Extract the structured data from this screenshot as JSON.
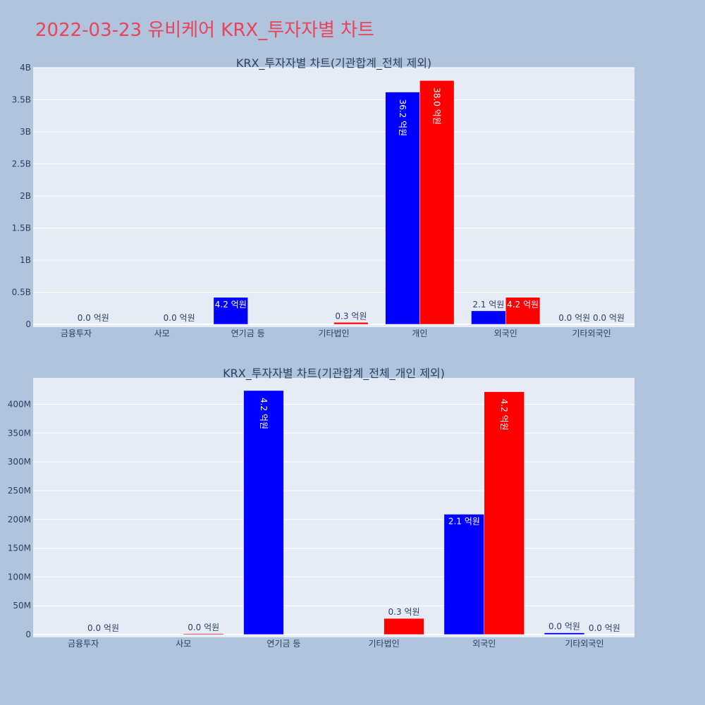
{
  "page": {
    "title": "2022-03-23 유비케어 KRX_투자자별 차트"
  },
  "colors": {
    "background": "#b0c4de",
    "plot_bg": "#e5ecf6",
    "grid": "#ffffff",
    "title": "#e8435a",
    "text": "#2a3f5f",
    "series_a": "#0000ff",
    "series_b": "#ff0000"
  },
  "chart_data": [
    {
      "type": "bar",
      "title": "KRX_투자자별 차트(기관합계_전체 제외)",
      "categories": [
        "금융투자",
        "사모",
        "연기금 등",
        "기타법인",
        "개인",
        "외국인",
        "기타외국인"
      ],
      "series": [
        {
          "color": "#0000ff",
          "values": [
            0,
            0,
            420000000,
            0,
            3620000000,
            210000000,
            0
          ],
          "labels": [
            "",
            "",
            "4.2 억원",
            "",
            "36.2 억원",
            "2.1 억원",
            "0.0 억원"
          ]
        },
        {
          "color": "#ff0000",
          "values": [
            0,
            0,
            0,
            30000000,
            3800000000,
            420000000,
            0
          ],
          "labels": [
            "0.0 억원",
            "0.0 억원",
            "",
            "0.3 억원",
            "38.0 억원",
            "4.2 억원",
            "0.0 억원"
          ]
        }
      ],
      "yticks": [
        0,
        500000000,
        1000000000,
        1500000000,
        2000000000,
        2500000000,
        3000000000,
        3500000000,
        4000000000
      ],
      "ytick_labels": [
        "0",
        "0.5B",
        "1B",
        "1.5B",
        "2B",
        "2.5B",
        "3B",
        "3.5B",
        "4B"
      ],
      "ylim": [
        0,
        4000000000
      ],
      "grid": true
    },
    {
      "type": "bar",
      "title": "KRX_투자자별 차트(기관합계_전체_개인 제외)",
      "categories": [
        "금융투자",
        "사모",
        "연기금 등",
        "기타법인",
        "외국인",
        "기타외국인"
      ],
      "series": [
        {
          "color": "#0000ff",
          "values": [
            0,
            0,
            424000000,
            0,
            209000000,
            3000000
          ],
          "labels": [
            "",
            "",
            "4.2 억원",
            "",
            "2.1 억원",
            "0.0 억원"
          ]
        },
        {
          "color": "#ff0000",
          "values": [
            0,
            1500000,
            0,
            28000000,
            422000000,
            0
          ],
          "labels": [
            "0.0 억원",
            "0.0 억원",
            "",
            "0.3 억원",
            "4.2 억원",
            "0.0 억원"
          ]
        }
      ],
      "yticks": [
        0,
        50000000,
        100000000,
        150000000,
        200000000,
        250000000,
        300000000,
        350000000,
        400000000
      ],
      "ytick_labels": [
        "0",
        "50M",
        "100M",
        "150M",
        "200M",
        "250M",
        "300M",
        "350M",
        "400M"
      ],
      "ylim": [
        0,
        446000000
      ],
      "grid": true
    }
  ]
}
